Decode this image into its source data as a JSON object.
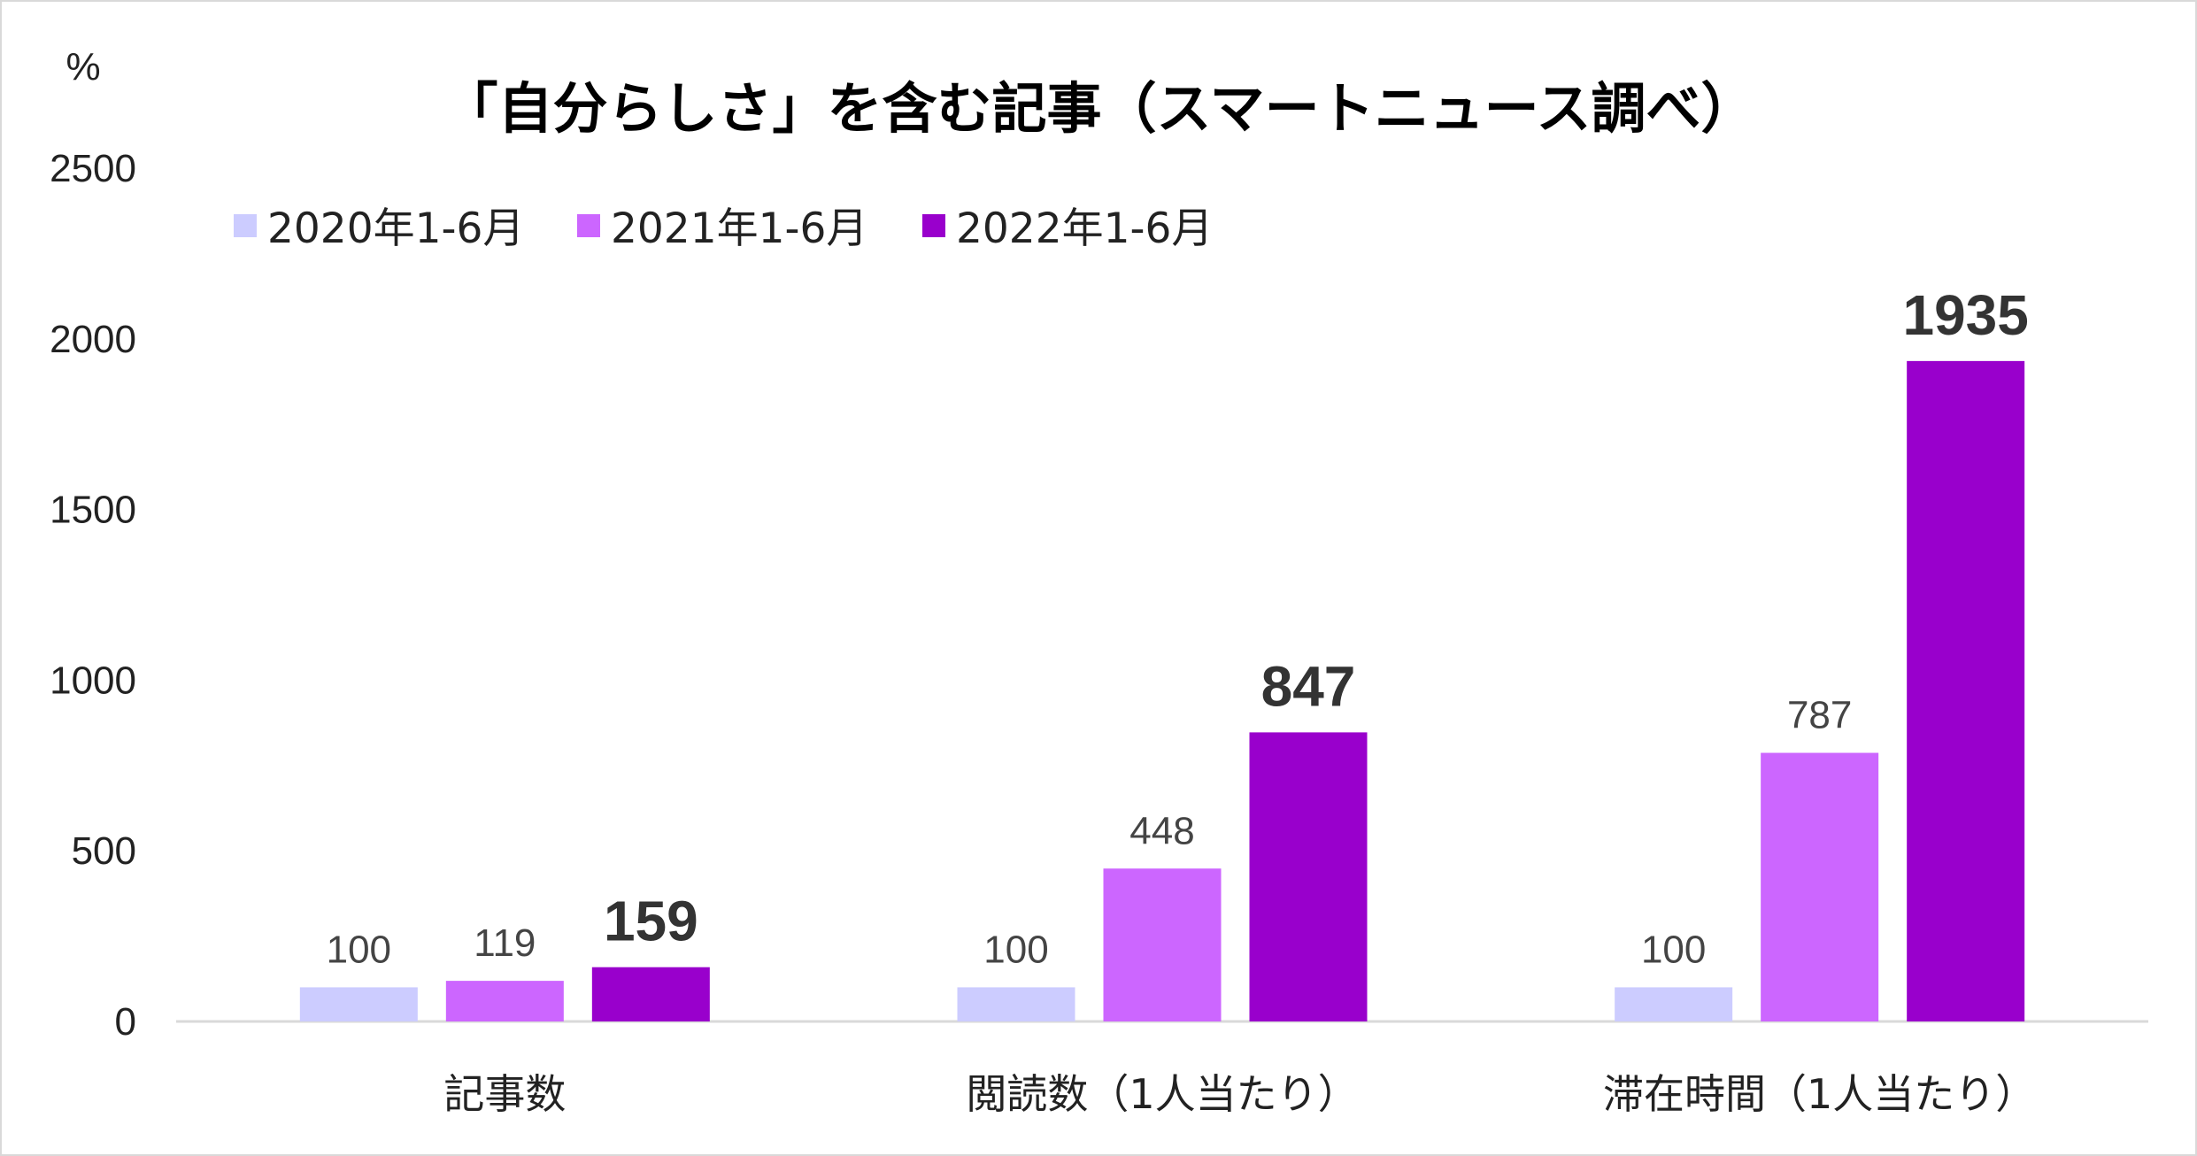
{
  "chart_data": {
    "type": "bar",
    "title": "「自分らしさ」を含む記事（スマートニュース調べ）",
    "unit_label": "%",
    "categories": [
      "記事数",
      "閲読数（1人当たり）",
      "滞在時間（1人当たり）"
    ],
    "series": [
      {
        "name": "2020年1-6月",
        "values": [
          100,
          100,
          100
        ],
        "color": "#ccccff",
        "label_bold": false
      },
      {
        "name": "2021年1-6月",
        "values": [
          119,
          448,
          787
        ],
        "color": "#cc66ff",
        "label_bold": false
      },
      {
        "name": "2022年1-6月",
        "values": [
          159,
          847,
          1935
        ],
        "color": "#9900cc",
        "label_bold": true
      }
    ],
    "ylim": [
      0,
      2500
    ],
    "yticks": [
      0,
      500,
      1000,
      1500,
      2000,
      2500
    ],
    "legend_position": "top-left",
    "grid": false,
    "xlabel": "",
    "ylabel": ""
  }
}
